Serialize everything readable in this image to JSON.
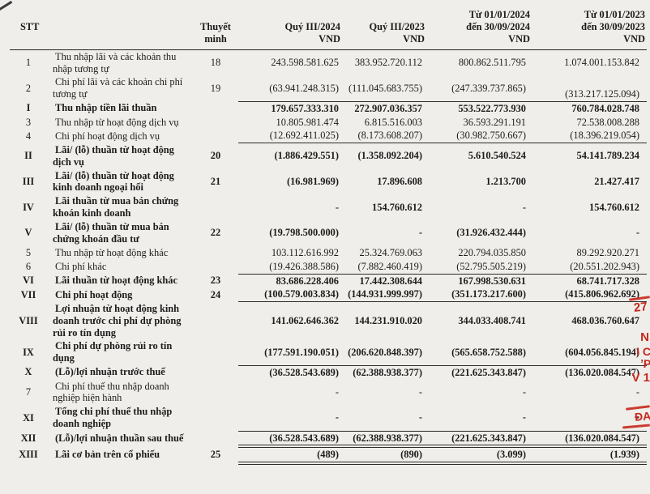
{
  "page": {
    "background": "#f0eeea",
    "text_color": "#1c1c1c",
    "stamp_color": "#c5281c"
  },
  "stamp": {
    "fragments": [
      "27",
      "N",
      "I C",
      "ʼP",
      "V 1",
      "ĐA"
    ]
  },
  "table": {
    "headers": [
      {
        "key": "stt",
        "lines": [
          "STT"
        ]
      },
      {
        "key": "desc",
        "lines": [
          ""
        ]
      },
      {
        "key": "note",
        "lines": [
          "Thuyết",
          "minh"
        ]
      },
      {
        "key": "q3_2024",
        "lines": [
          "Quý III/2024",
          "VND"
        ]
      },
      {
        "key": "q3_2023",
        "lines": [
          "Quý III/2023",
          "VND"
        ]
      },
      {
        "key": "ytd_2024",
        "lines": [
          "Từ 01/01/2024",
          "đến 30/09/2024",
          "VND"
        ]
      },
      {
        "key": "ytd_2023",
        "lines": [
          "Từ 01/01/2023",
          "đến 30/09/2023",
          "VND"
        ]
      }
    ],
    "rows": [
      {
        "stt": "1",
        "desc": "Thu nhập lãi và các khoản thu nhập tương tự",
        "note": "18",
        "values": [
          "243.598.581.625",
          "383.952.720.112",
          "800.862.511.795",
          "1.074.001.153.842"
        ],
        "bold": false,
        "rule": "none"
      },
      {
        "stt": "2",
        "desc": "Chi phí lãi và các khoản chi phí tương tự",
        "note": "19",
        "values": [
          "(63.941.248.315)",
          "(111.045.683.755)",
          "(247.339.737.865)",
          "(313.217.125.094)"
        ],
        "bold": false,
        "rule": "single",
        "drop_last": true
      },
      {
        "stt": "I",
        "desc": "Thu nhập tiền lãi thuần",
        "note": "",
        "values": [
          "179.657.333.310",
          "272.907.036.357",
          "553.522.773.930",
          "760.784.028.748"
        ],
        "bold": true,
        "rule": "none"
      },
      {
        "stt": "3",
        "desc": "Thu nhập từ hoạt động dịch vụ",
        "note": "",
        "values": [
          "10.805.981.474",
          "6.815.516.003",
          "36.593.291.191",
          "72.538.008.288"
        ],
        "bold": false,
        "rule": "none"
      },
      {
        "stt": "4",
        "desc": "Chi phí hoạt động dịch vụ",
        "note": "",
        "values": [
          "(12.692.411.025)",
          "(8.173.608.207)",
          "(30.982.750.667)",
          "(18.396.219.054)"
        ],
        "bold": false,
        "rule": "single"
      },
      {
        "stt": "II",
        "desc": "Lãi/ (lỗ) thuần từ hoạt động dịch vụ",
        "note": "20",
        "values": [
          "(1.886.429.551)",
          "(1.358.092.204)",
          "5.610.540.524",
          "54.141.789.234"
        ],
        "bold": true,
        "rule": "none"
      },
      {
        "stt": "III",
        "desc": "Lãi/ (lỗ) thuần từ hoạt động kinh doanh ngoại hối",
        "note": "21",
        "values": [
          "(16.981.969)",
          "17.896.608",
          "1.213.700",
          "21.427.417"
        ],
        "bold": true,
        "rule": "none"
      },
      {
        "stt": "IV",
        "desc": "Lãi thuần từ mua bán chứng khoán kinh doanh",
        "note": "",
        "values": [
          "-",
          "154.760.612",
          "-",
          "154.760.612"
        ],
        "bold": true,
        "rule": "none"
      },
      {
        "stt": "V",
        "desc": "Lãi/ (lỗ) thuần từ mua bán chứng khoán đầu tư",
        "note": "22",
        "values": [
          "(19.798.500.000)",
          "-",
          "(31.926.432.444)",
          "-"
        ],
        "bold": true,
        "rule": "none"
      },
      {
        "stt": "5",
        "desc": "Thu nhập từ hoạt động khác",
        "note": "",
        "values": [
          "103.112.616.992",
          "25.324.769.063",
          "220.794.035.850",
          "89.292.920.271"
        ],
        "bold": false,
        "rule": "none"
      },
      {
        "stt": "6",
        "desc": "Chi phí khác",
        "note": "",
        "values": [
          "(19.426.388.586)",
          "(7.882.460.419)",
          "(52.795.505.219)",
          "(20.551.202.943)"
        ],
        "bold": false,
        "rule": "single"
      },
      {
        "stt": "VI",
        "desc": "Lãi thuần từ hoạt động khác",
        "note": "23",
        "values": [
          "83.686.228.406",
          "17.442.308.644",
          "167.998.530.631",
          "68.741.717.328"
        ],
        "bold": true,
        "rule": "none"
      },
      {
        "stt": "VII",
        "desc": "Chi phí hoạt động",
        "note": "24",
        "values": [
          "(100.579.003.834)",
          "(144.931.999.997)",
          "(351.173.217.600)",
          "(415.806.962.692)"
        ],
        "bold": true,
        "rule": "single"
      },
      {
        "stt": "VIII",
        "desc": "Lợi nhuận từ hoạt động kinh doanh trước chi phí dự phòng rủi ro tín dụng",
        "note": "",
        "values": [
          "141.062.646.362",
          "144.231.910.020",
          "344.033.408.741",
          "468.036.760.647"
        ],
        "bold": true,
        "rule": "none"
      },
      {
        "stt": "IX",
        "desc": "Chi phí dự phòng rủi ro tín dụng",
        "note": "",
        "values": [
          "(177.591.190.051)",
          "(206.620.848.397)",
          "(565.658.752.588)",
          "(604.056.845.194)"
        ],
        "bold": true,
        "rule": "single"
      },
      {
        "stt": "X",
        "desc": "(Lỗ)/lợi nhuận trước thuế",
        "note": "",
        "values": [
          "(36.528.543.689)",
          "(62.388.938.377)",
          "(221.625.343.847)",
          "(136.020.084.547)"
        ],
        "bold": true,
        "rule": "none"
      },
      {
        "stt": "7",
        "desc": "Chi phí thuế thu nhập doanh nghiệp hiện hành",
        "note": "",
        "values": [
          "-",
          "-",
          "-",
          "-"
        ],
        "bold": false,
        "rule": "none"
      },
      {
        "stt": "XI",
        "desc": "Tổng chi phí thuế thu nhập doanh nghiệp",
        "note": "",
        "values": [
          "-",
          "-",
          "-",
          "-"
        ],
        "bold": true,
        "rule": "single"
      },
      {
        "stt": "XII",
        "desc": "(Lỗ)/lợi nhuận thuần sau thuế",
        "note": "",
        "values": [
          "(36.528.543.689)",
          "(62.388.938.377)",
          "(221.625.343.847)",
          "(136.020.084.547)"
        ],
        "bold": true,
        "rule": "double"
      },
      {
        "stt": "XIII",
        "desc": "Lãi cơ bản trên cổ phiếu",
        "note": "25",
        "values": [
          "(489)",
          "(890)",
          "(3.099)",
          "(1.939)"
        ],
        "bold": true,
        "rule": "double"
      }
    ]
  }
}
